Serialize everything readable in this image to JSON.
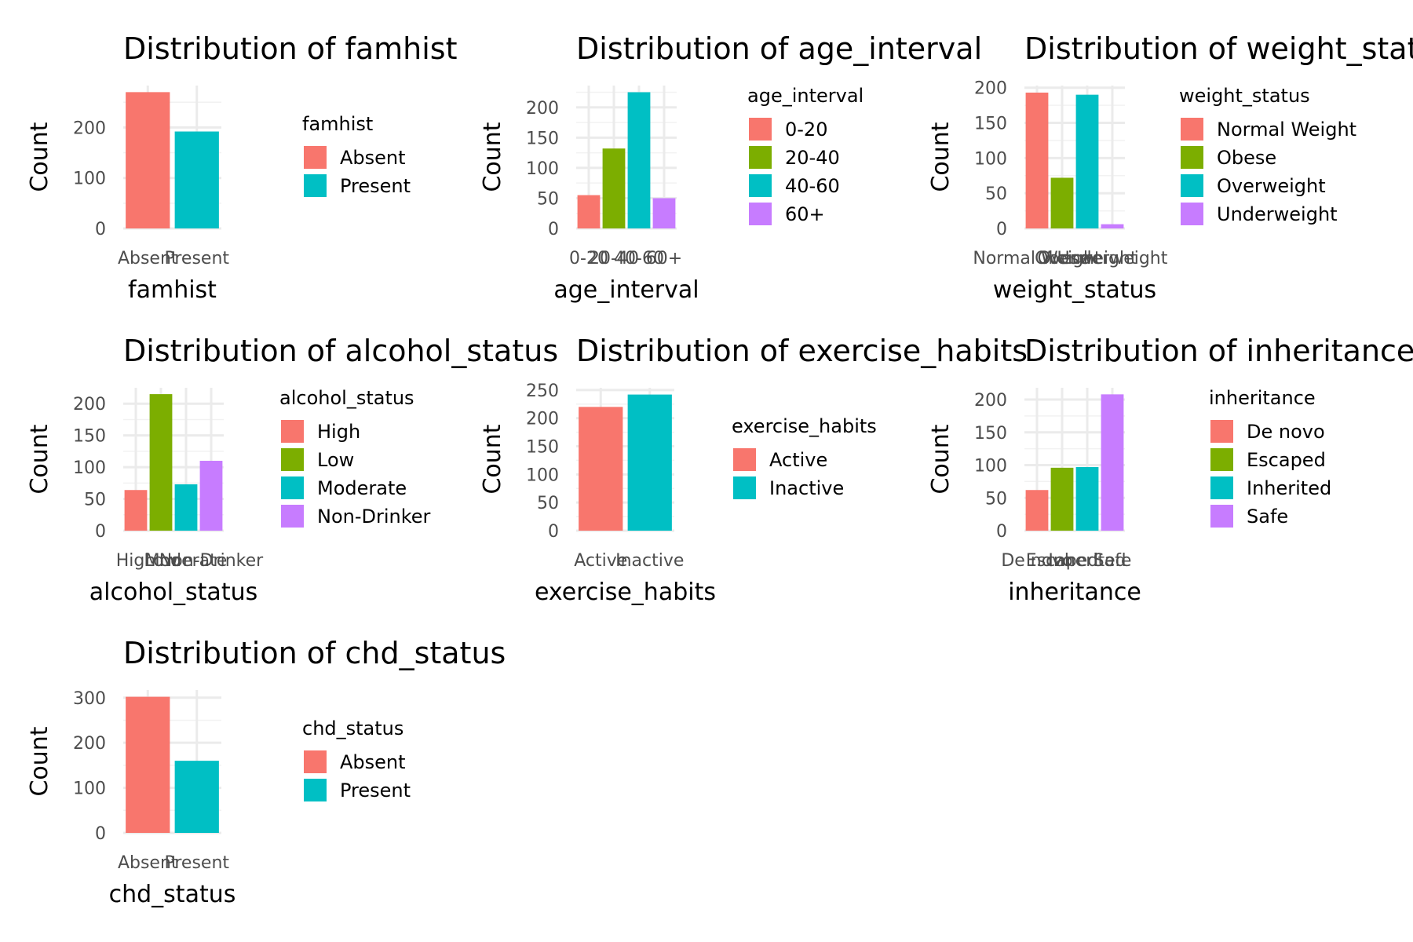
{
  "chart_data": [
    {
      "type": "bar",
      "title": "Distribution of famhist",
      "xlabel": "famhist",
      "ylabel": "Count",
      "categories": [
        "Absent",
        "Present"
      ],
      "values": [
        270,
        192
      ],
      "yticks": [
        0,
        100,
        200
      ],
      "ylim": [
        0,
        283
      ],
      "legend": {
        "title": "famhist",
        "entries": [
          "Absent",
          "Present"
        ]
      },
      "colors": [
        "#F8766D",
        "#00BFC4"
      ],
      "grid": true,
      "legend_position": "right"
    },
    {
      "type": "bar",
      "title": "Distribution of age_interval",
      "xlabel": "age_interval",
      "ylabel": "Count",
      "categories": [
        "0-20",
        "20-40",
        "40-60",
        "60+"
      ],
      "values": [
        55,
        132,
        225,
        50
      ],
      "yticks": [
        0,
        50,
        100,
        150,
        200
      ],
      "ylim": [
        0,
        236
      ],
      "legend": {
        "title": "age_interval",
        "entries": [
          "0-20",
          "20-40",
          "40-60",
          "60+"
        ]
      },
      "colors": [
        "#F8766D",
        "#7CAE00",
        "#00BFC4",
        "#C77CFF"
      ],
      "grid": true,
      "legend_position": "right"
    },
    {
      "type": "bar",
      "title": "Distribution of weight_status",
      "xlabel": "weight_status",
      "ylabel": "Count",
      "categories": [
        "Normal Weight",
        "Obese",
        "Overweight",
        "Underweight"
      ],
      "values": [
        193,
        72,
        190,
        6
      ],
      "yticks": [
        0,
        50,
        100,
        150,
        200
      ],
      "ylim": [
        0,
        203
      ],
      "legend": {
        "title": "weight_status",
        "entries": [
          "Normal Weight",
          "Obese",
          "Overweight",
          "Underweight"
        ]
      },
      "colors": [
        "#F8766D",
        "#7CAE00",
        "#00BFC4",
        "#C77CFF"
      ],
      "grid": true,
      "legend_position": "right"
    },
    {
      "type": "bar",
      "title": "Distribution of alcohol_status",
      "xlabel": "alcohol_status",
      "ylabel": "Count",
      "categories": [
        "High",
        "Low",
        "Moderate",
        "Non-Drinker"
      ],
      "values": [
        64,
        215,
        73,
        110
      ],
      "yticks": [
        0,
        50,
        100,
        150,
        200
      ],
      "ylim": [
        0,
        225
      ],
      "legend": {
        "title": "alcohol_status",
        "entries": [
          "High",
          "Low",
          "Moderate",
          "Non-Drinker"
        ]
      },
      "colors": [
        "#F8766D",
        "#7CAE00",
        "#00BFC4",
        "#C77CFF"
      ],
      "grid": true,
      "legend_position": "right"
    },
    {
      "type": "bar",
      "title": "Distribution of exercise_habits",
      "xlabel": "exercise_habits",
      "ylabel": "Count",
      "categories": [
        "Active",
        "Inactive"
      ],
      "values": [
        220,
        242
      ],
      "yticks": [
        0,
        50,
        100,
        150,
        200,
        250
      ],
      "ylim": [
        0,
        254
      ],
      "legend": {
        "title": "exercise_habits",
        "entries": [
          "Active",
          "Inactive"
        ]
      },
      "colors": [
        "#F8766D",
        "#00BFC4"
      ],
      "grid": true,
      "legend_position": "right"
    },
    {
      "type": "bar",
      "title": "Distribution of inheritance",
      "xlabel": "inheritance",
      "ylabel": "Count",
      "categories": [
        "De novo",
        "Escaped",
        "Inherited",
        "Safe"
      ],
      "values": [
        62,
        96,
        97,
        208
      ],
      "yticks": [
        0,
        50,
        100,
        150,
        200
      ],
      "ylim": [
        0,
        218
      ],
      "legend": {
        "title": "inheritance",
        "entries": [
          "De novo",
          "Escaped",
          "Inherited",
          "Safe"
        ]
      },
      "colors": [
        "#F8766D",
        "#7CAE00",
        "#00BFC4",
        "#C77CFF"
      ],
      "grid": true,
      "legend_position": "right"
    },
    {
      "type": "bar",
      "title": "Distribution of chd_status",
      "xlabel": "chd_status",
      "ylabel": "Count",
      "categories": [
        "Absent",
        "Present"
      ],
      "values": [
        302,
        160
      ],
      "yticks": [
        0,
        100,
        200,
        300
      ],
      "ylim": [
        0,
        317
      ],
      "legend": {
        "title": "chd_status",
        "entries": [
          "Absent",
          "Present"
        ]
      },
      "colors": [
        "#F8766D",
        "#00BFC4"
      ],
      "grid": true,
      "legend_position": "right"
    }
  ]
}
